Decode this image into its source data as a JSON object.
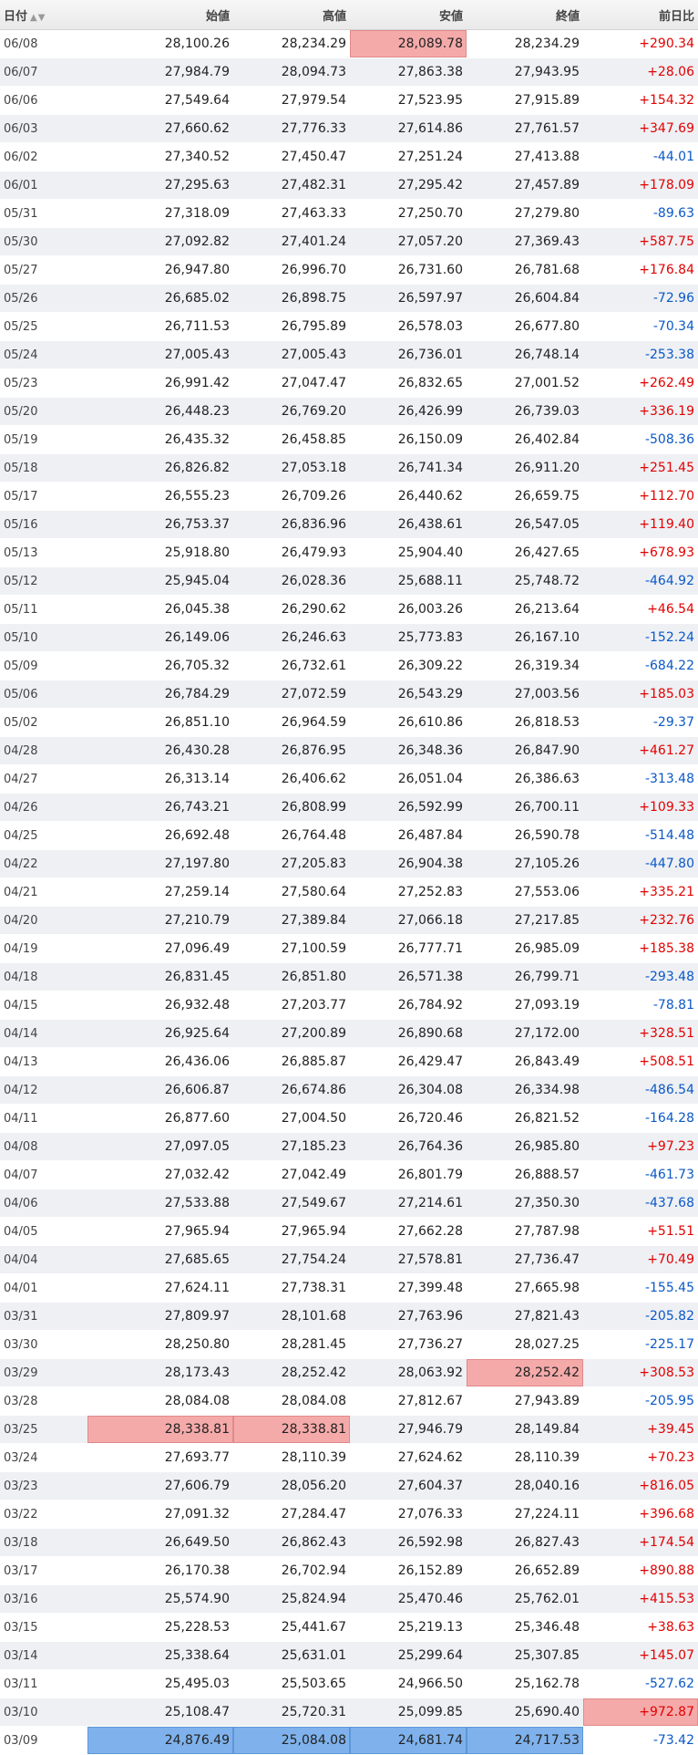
{
  "headers": {
    "date": "日付",
    "open": "始値",
    "high": "高値",
    "low": "安値",
    "close": "終値",
    "change": "前日比",
    "sort_icons": "▲▼"
  },
  "colors": {
    "positive": "#e30000",
    "negative": "#0a58c8",
    "highlight_high": "#f5aaaa",
    "highlight_low": "#7fb2ec"
  },
  "rows": [
    {
      "date": "06/08",
      "open": "28,100.26",
      "high": "28,234.29",
      "low": "28,089.78",
      "close": "28,234.29",
      "change": "+290.34",
      "hl_low": "high"
    },
    {
      "date": "06/07",
      "open": "27,984.79",
      "high": "28,094.73",
      "low": "27,863.38",
      "close": "27,943.95",
      "change": "+28.06"
    },
    {
      "date": "06/06",
      "open": "27,549.64",
      "high": "27,979.54",
      "low": "27,523.95",
      "close": "27,915.89",
      "change": "+154.32"
    },
    {
      "date": "06/03",
      "open": "27,660.62",
      "high": "27,776.33",
      "low": "27,614.86",
      "close": "27,761.57",
      "change": "+347.69"
    },
    {
      "date": "06/02",
      "open": "27,340.52",
      "high": "27,450.47",
      "low": "27,251.24",
      "close": "27,413.88",
      "change": "-44.01"
    },
    {
      "date": "06/01",
      "open": "27,295.63",
      "high": "27,482.31",
      "low": "27,295.42",
      "close": "27,457.89",
      "change": "+178.09"
    },
    {
      "date": "05/31",
      "open": "27,318.09",
      "high": "27,463.33",
      "low": "27,250.70",
      "close": "27,279.80",
      "change": "-89.63"
    },
    {
      "date": "05/30",
      "open": "27,092.82",
      "high": "27,401.24",
      "low": "27,057.20",
      "close": "27,369.43",
      "change": "+587.75"
    },
    {
      "date": "05/27",
      "open": "26,947.80",
      "high": "26,996.70",
      "low": "26,731.60",
      "close": "26,781.68",
      "change": "+176.84"
    },
    {
      "date": "05/26",
      "open": "26,685.02",
      "high": "26,898.75",
      "low": "26,597.97",
      "close": "26,604.84",
      "change": "-72.96"
    },
    {
      "date": "05/25",
      "open": "26,711.53",
      "high": "26,795.89",
      "low": "26,578.03",
      "close": "26,677.80",
      "change": "-70.34"
    },
    {
      "date": "05/24",
      "open": "27,005.43",
      "high": "27,005.43",
      "low": "26,736.01",
      "close": "26,748.14",
      "change": "-253.38"
    },
    {
      "date": "05/23",
      "open": "26,991.42",
      "high": "27,047.47",
      "low": "26,832.65",
      "close": "27,001.52",
      "change": "+262.49"
    },
    {
      "date": "05/20",
      "open": "26,448.23",
      "high": "26,769.20",
      "low": "26,426.99",
      "close": "26,739.03",
      "change": "+336.19"
    },
    {
      "date": "05/19",
      "open": "26,435.32",
      "high": "26,458.85",
      "low": "26,150.09",
      "close": "26,402.84",
      "change": "-508.36"
    },
    {
      "date": "05/18",
      "open": "26,826.82",
      "high": "27,053.18",
      "low": "26,741.34",
      "close": "26,911.20",
      "change": "+251.45"
    },
    {
      "date": "05/17",
      "open": "26,555.23",
      "high": "26,709.26",
      "low": "26,440.62",
      "close": "26,659.75",
      "change": "+112.70"
    },
    {
      "date": "05/16",
      "open": "26,753.37",
      "high": "26,836.96",
      "low": "26,438.61",
      "close": "26,547.05",
      "change": "+119.40"
    },
    {
      "date": "05/13",
      "open": "25,918.80",
      "high": "26,479.93",
      "low": "25,904.40",
      "close": "26,427.65",
      "change": "+678.93"
    },
    {
      "date": "05/12",
      "open": "25,945.04",
      "high": "26,028.36",
      "low": "25,688.11",
      "close": "25,748.72",
      "change": "-464.92"
    },
    {
      "date": "05/11",
      "open": "26,045.38",
      "high": "26,290.62",
      "low": "26,003.26",
      "close": "26,213.64",
      "change": "+46.54"
    },
    {
      "date": "05/10",
      "open": "26,149.06",
      "high": "26,246.63",
      "low": "25,773.83",
      "close": "26,167.10",
      "change": "-152.24"
    },
    {
      "date": "05/09",
      "open": "26,705.32",
      "high": "26,732.61",
      "low": "26,309.22",
      "close": "26,319.34",
      "change": "-684.22"
    },
    {
      "date": "05/06",
      "open": "26,784.29",
      "high": "27,072.59",
      "low": "26,543.29",
      "close": "27,003.56",
      "change": "+185.03"
    },
    {
      "date": "05/02",
      "open": "26,851.10",
      "high": "26,964.59",
      "low": "26,610.86",
      "close": "26,818.53",
      "change": "-29.37"
    },
    {
      "date": "04/28",
      "open": "26,430.28",
      "high": "26,876.95",
      "low": "26,348.36",
      "close": "26,847.90",
      "change": "+461.27"
    },
    {
      "date": "04/27",
      "open": "26,313.14",
      "high": "26,406.62",
      "low": "26,051.04",
      "close": "26,386.63",
      "change": "-313.48"
    },
    {
      "date": "04/26",
      "open": "26,743.21",
      "high": "26,808.99",
      "low": "26,592.99",
      "close": "26,700.11",
      "change": "+109.33"
    },
    {
      "date": "04/25",
      "open": "26,692.48",
      "high": "26,764.48",
      "low": "26,487.84",
      "close": "26,590.78",
      "change": "-514.48"
    },
    {
      "date": "04/22",
      "open": "27,197.80",
      "high": "27,205.83",
      "low": "26,904.38",
      "close": "27,105.26",
      "change": "-447.80"
    },
    {
      "date": "04/21",
      "open": "27,259.14",
      "high": "27,580.64",
      "low": "27,252.83",
      "close": "27,553.06",
      "change": "+335.21"
    },
    {
      "date": "04/20",
      "open": "27,210.79",
      "high": "27,389.84",
      "low": "27,066.18",
      "close": "27,217.85",
      "change": "+232.76"
    },
    {
      "date": "04/19",
      "open": "27,096.49",
      "high": "27,100.59",
      "low": "26,777.71",
      "close": "26,985.09",
      "change": "+185.38"
    },
    {
      "date": "04/18",
      "open": "26,831.45",
      "high": "26,851.80",
      "low": "26,571.38",
      "close": "26,799.71",
      "change": "-293.48"
    },
    {
      "date": "04/15",
      "open": "26,932.48",
      "high": "27,203.77",
      "low": "26,784.92",
      "close": "27,093.19",
      "change": "-78.81"
    },
    {
      "date": "04/14",
      "open": "26,925.64",
      "high": "27,200.89",
      "low": "26,890.68",
      "close": "27,172.00",
      "change": "+328.51"
    },
    {
      "date": "04/13",
      "open": "26,436.06",
      "high": "26,885.87",
      "low": "26,429.47",
      "close": "26,843.49",
      "change": "+508.51"
    },
    {
      "date": "04/12",
      "open": "26,606.87",
      "high": "26,674.86",
      "low": "26,304.08",
      "close": "26,334.98",
      "change": "-486.54"
    },
    {
      "date": "04/11",
      "open": "26,877.60",
      "high": "27,004.50",
      "low": "26,720.46",
      "close": "26,821.52",
      "change": "-164.28"
    },
    {
      "date": "04/08",
      "open": "27,097.05",
      "high": "27,185.23",
      "low": "26,764.36",
      "close": "26,985.80",
      "change": "+97.23"
    },
    {
      "date": "04/07",
      "open": "27,032.42",
      "high": "27,042.49",
      "low": "26,801.79",
      "close": "26,888.57",
      "change": "-461.73"
    },
    {
      "date": "04/06",
      "open": "27,533.88",
      "high": "27,549.67",
      "low": "27,214.61",
      "close": "27,350.30",
      "change": "-437.68"
    },
    {
      "date": "04/05",
      "open": "27,965.94",
      "high": "27,965.94",
      "low": "27,662.28",
      "close": "27,787.98",
      "change": "+51.51"
    },
    {
      "date": "04/04",
      "open": "27,685.65",
      "high": "27,754.24",
      "low": "27,578.81",
      "close": "27,736.47",
      "change": "+70.49"
    },
    {
      "date": "04/01",
      "open": "27,624.11",
      "high": "27,738.31",
      "low": "27,399.48",
      "close": "27,665.98",
      "change": "-155.45"
    },
    {
      "date": "03/31",
      "open": "27,809.97",
      "high": "28,101.68",
      "low": "27,763.96",
      "close": "27,821.43",
      "change": "-205.82"
    },
    {
      "date": "03/30",
      "open": "28,250.80",
      "high": "28,281.45",
      "low": "27,736.27",
      "close": "28,027.25",
      "change": "-225.17"
    },
    {
      "date": "03/29",
      "open": "28,173.43",
      "high": "28,252.42",
      "low": "28,063.92",
      "close": "28,252.42",
      "change": "+308.53",
      "hl_close": "high"
    },
    {
      "date": "03/28",
      "open": "28,084.08",
      "high": "28,084.08",
      "low": "27,812.67",
      "close": "27,943.89",
      "change": "-205.95"
    },
    {
      "date": "03/25",
      "open": "28,338.81",
      "high": "28,338.81",
      "low": "27,946.79",
      "close": "28,149.84",
      "change": "+39.45",
      "hl_open": "high",
      "hl_high": "high"
    },
    {
      "date": "03/24",
      "open": "27,693.77",
      "high": "28,110.39",
      "low": "27,624.62",
      "close": "28,110.39",
      "change": "+70.23"
    },
    {
      "date": "03/23",
      "open": "27,606.79",
      "high": "28,056.20",
      "low": "27,604.37",
      "close": "28,040.16",
      "change": "+816.05"
    },
    {
      "date": "03/22",
      "open": "27,091.32",
      "high": "27,284.47",
      "low": "27,076.33",
      "close": "27,224.11",
      "change": "+396.68"
    },
    {
      "date": "03/18",
      "open": "26,649.50",
      "high": "26,862.43",
      "low": "26,592.98",
      "close": "26,827.43",
      "change": "+174.54"
    },
    {
      "date": "03/17",
      "open": "26,170.38",
      "high": "26,702.94",
      "low": "26,152.89",
      "close": "26,652.89",
      "change": "+890.88"
    },
    {
      "date": "03/16",
      "open": "25,574.90",
      "high": "25,824.94",
      "low": "25,470.46",
      "close": "25,762.01",
      "change": "+415.53"
    },
    {
      "date": "03/15",
      "open": "25,228.53",
      "high": "25,441.67",
      "low": "25,219.13",
      "close": "25,346.48",
      "change": "+38.63"
    },
    {
      "date": "03/14",
      "open": "25,338.64",
      "high": "25,631.01",
      "low": "25,299.64",
      "close": "25,307.85",
      "change": "+145.07"
    },
    {
      "date": "03/11",
      "open": "25,495.03",
      "high": "25,503.65",
      "low": "24,966.50",
      "close": "25,162.78",
      "change": "-527.62"
    },
    {
      "date": "03/10",
      "open": "25,108.47",
      "high": "25,720.31",
      "low": "25,099.85",
      "close": "25,690.40",
      "change": "+972.87",
      "hl_change": "high"
    },
    {
      "date": "03/09",
      "open": "24,876.49",
      "high": "25,084.08",
      "low": "24,681.74",
      "close": "24,717.53",
      "change": "-73.42",
      "hl_open": "low",
      "hl_high": "low",
      "hl_low": "low",
      "hl_close": "low"
    }
  ]
}
